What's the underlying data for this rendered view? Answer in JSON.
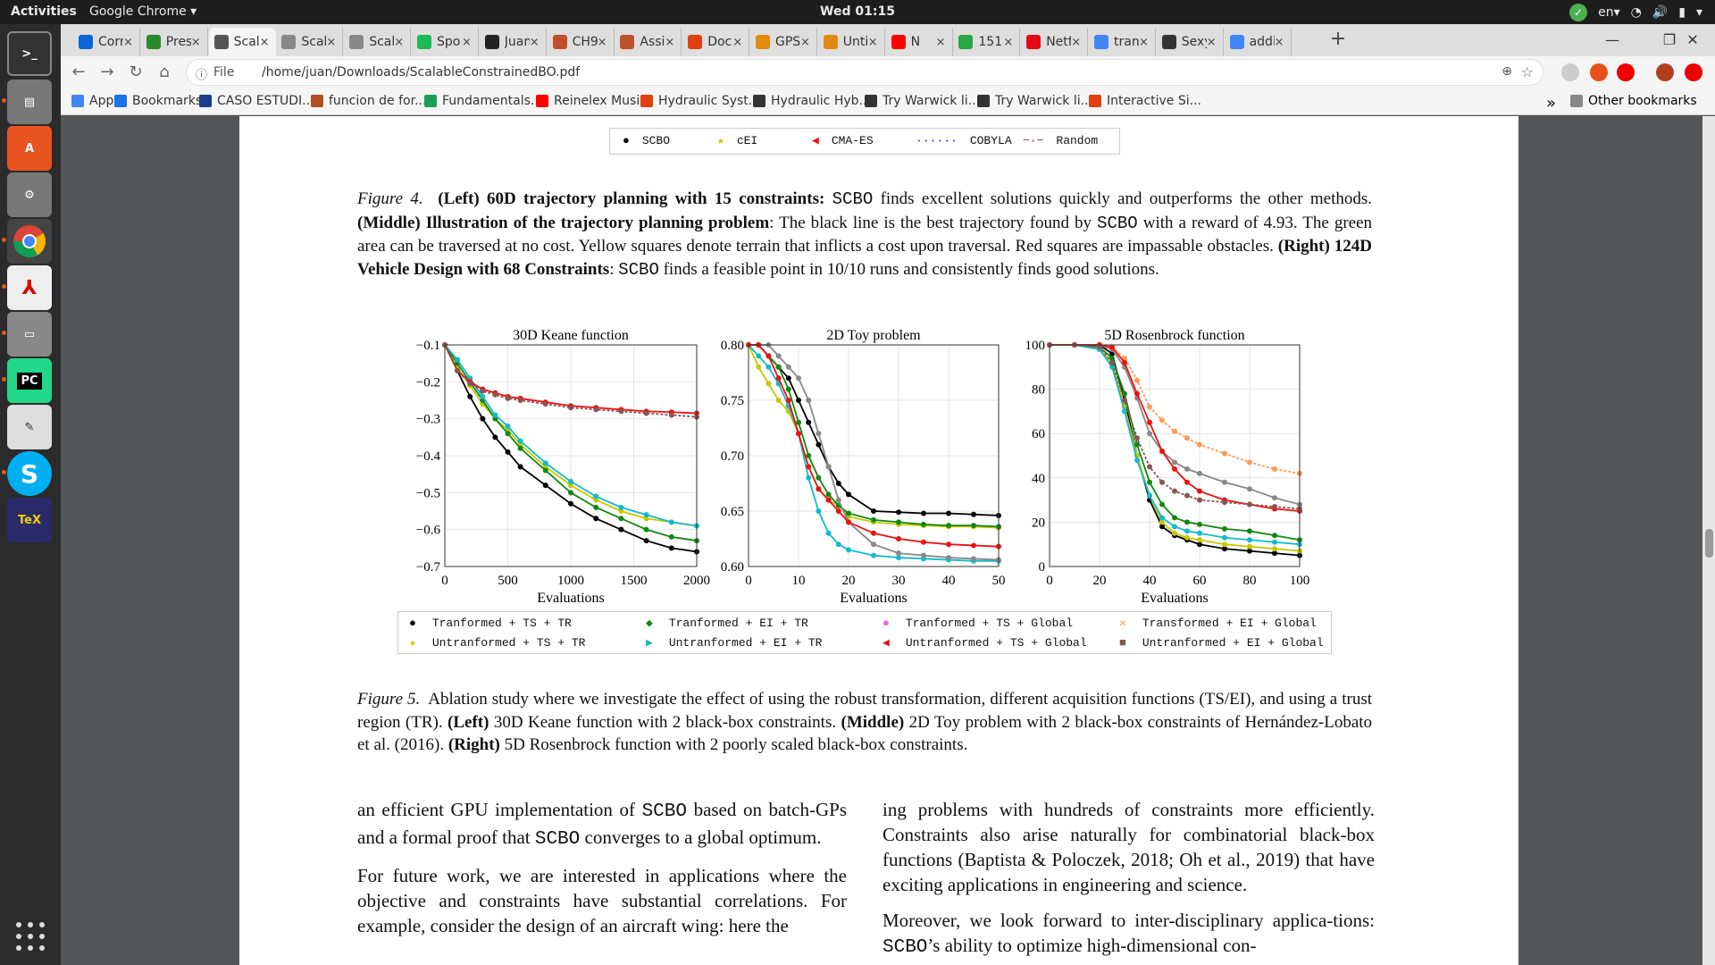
{
  "topbar": {
    "activities": "Activities",
    "app": "Google Chrome ▾",
    "clock": "Wed 01:15",
    "lang": "en▾"
  },
  "tabs": [
    {
      "label": "Corr",
      "color": "#0a64d8"
    },
    {
      "label": "Pres",
      "color": "#2a8a2a"
    },
    {
      "label": "Scal",
      "color": "#555555"
    },
    {
      "label": "Scal",
      "color": "#888888"
    },
    {
      "label": "Scal",
      "color": "#888888"
    },
    {
      "label": "Spo",
      "color": "#1db954"
    },
    {
      "label": "Juan",
      "color": "#222222"
    },
    {
      "label": "CH9",
      "color": "#c0502b"
    },
    {
      "label": "Assi",
      "color": "#c0502b"
    },
    {
      "label": "Doc",
      "color": "#e04010"
    },
    {
      "label": "GPS",
      "color": "#e08a10"
    },
    {
      "label": "Unti",
      "color": "#e08a10"
    },
    {
      "label": "N",
      "color": "#ff0000"
    },
    {
      "label": "151",
      "color": "#28a745"
    },
    {
      "label": "Netf",
      "color": "#e50914"
    },
    {
      "label": "tran",
      "color": "#4285f4"
    },
    {
      "label": "Sexy",
      "color": "#333333"
    },
    {
      "label": "addi",
      "color": "#4285f4"
    }
  ],
  "address": {
    "scheme": "File",
    "url": "/home/juan/Downloads/ScalableConstrainedBO.pdf"
  },
  "bookmarks": [
    {
      "label": "Apps",
      "color": "#4285f4"
    },
    {
      "label": "Bookmarks",
      "color": "#1a73e8"
    },
    {
      "label": "CASO ESTUDI...",
      "color": "#1c3c8c"
    },
    {
      "label": "funcion de for...",
      "color": "#b05020"
    },
    {
      "label": "Fundamentals...",
      "color": "#1a9e5a"
    },
    {
      "label": "Reinelex Music",
      "color": "#ff0000"
    },
    {
      "label": "Hydraulic Syst...",
      "color": "#e04010"
    },
    {
      "label": "Hydraulic Hyb...",
      "color": "#333333"
    },
    {
      "label": "Try Warwick li...",
      "color": "#333333"
    },
    {
      "label": "Try Warwick li...",
      "color": "#333333"
    },
    {
      "label": "Interactive Si...",
      "color": "#e04010"
    }
  ],
  "other_bookmarks": "Other bookmarks",
  "fig4_legend": [
    {
      "label": "SCBO",
      "marker": "●",
      "color": "#000000"
    },
    {
      "label": "cEI",
      "marker": "★",
      "color": "#c8c800"
    },
    {
      "label": "CMA-ES",
      "marker": "◀",
      "color": "#ee1111"
    },
    {
      "label": "COBYLA",
      "marker": "······",
      "color": "#1a1aee"
    },
    {
      "label": "Random",
      "marker": "−·−",
      "color": "#993333"
    }
  ],
  "fig4_caption": {
    "fig": "Figure 4.",
    "b1": "(Left) 60D trajectory planning with 15 constraints:",
    "m1": "SCBO",
    "t1": "finds excellent solutions quickly and outperforms the other methods.",
    "b2": "(Middle) Illustration of the trajectory planning problem",
    "t2": ": The black line is the best trajectory found by",
    "m2": "SCBO",
    "t3": "with a reward of 4.93. The green area can be traversed at no cost. Yellow squares denote terrain that inflicts a cost upon traversal. Red squares are impassable obstacles.",
    "b3": "(Right) 124D Vehicle Design with 68 Constraints",
    "t4": ":",
    "m3": "SCBO",
    "t5": "finds a feasible point in 10/10 runs and consistently finds good solutions."
  },
  "chart_data": [
    {
      "type": "line",
      "title": "30D Keane function",
      "xlabel": "Evaluations",
      "xlim": [
        0,
        2000
      ],
      "ylim": [
        -0.7,
        -0.1
      ],
      "xticks": [
        "0",
        "500",
        "1000",
        "1500",
        "2000"
      ],
      "yticks": [
        "−0.1",
        "−0.2",
        "−0.3",
        "−0.4",
        "−0.5",
        "−0.6",
        "−0.7"
      ],
      "x": [
        0,
        100,
        200,
        300,
        400,
        500,
        600,
        800,
        1000,
        1200,
        1400,
        1600,
        1800,
        2000
      ],
      "series": [
        {
          "name": "Tranformed + TS + TR",
          "values": [
            -0.1,
            -0.17,
            -0.24,
            -0.3,
            -0.35,
            -0.39,
            -0.43,
            -0.48,
            -0.53,
            -0.57,
            -0.6,
            -0.63,
            -0.65,
            -0.66
          ]
        },
        {
          "name": "Untranformed + TS + TR",
          "values": [
            -0.1,
            -0.16,
            -0.21,
            -0.26,
            -0.3,
            -0.33,
            -0.37,
            -0.43,
            -0.48,
            -0.52,
            -0.55,
            -0.57,
            -0.58,
            -0.59
          ]
        },
        {
          "name": "Tranformed + EI + TR",
          "values": [
            -0.1,
            -0.15,
            -0.2,
            -0.25,
            -0.3,
            -0.34,
            -0.38,
            -0.44,
            -0.5,
            -0.54,
            -0.57,
            -0.6,
            -0.62,
            -0.63
          ]
        },
        {
          "name": "Untranformed + EI + TR",
          "values": [
            -0.1,
            -0.14,
            -0.19,
            -0.24,
            -0.29,
            -0.32,
            -0.36,
            -0.42,
            -0.47,
            -0.51,
            -0.54,
            -0.56,
            -0.58,
            -0.59
          ]
        },
        {
          "name": "Untranformed + TS + Global",
          "values": [
            -0.1,
            -0.17,
            -0.2,
            -0.22,
            -0.23,
            -0.24,
            -0.245,
            -0.255,
            -0.265,
            -0.27,
            -0.275,
            -0.28,
            -0.282,
            -0.285
          ]
        },
        {
          "name": "Untranformed + EI + Global",
          "values": [
            -0.1,
            -0.17,
            -0.205,
            -0.225,
            -0.235,
            -0.245,
            -0.25,
            -0.26,
            -0.27,
            -0.275,
            -0.28,
            -0.285,
            -0.29,
            -0.295
          ]
        }
      ]
    },
    {
      "type": "line",
      "title": "2D Toy problem",
      "xlabel": "Evaluations",
      "xlim": [
        0,
        50
      ],
      "ylim": [
        0.6,
        0.8
      ],
      "xticks": [
        "0",
        "10",
        "20",
        "30",
        "40",
        "50"
      ],
      "yticks": [
        "0.80",
        "0.75",
        "0.70",
        "0.65",
        "0.60"
      ],
      "x": [
        0,
        2,
        4,
        6,
        8,
        10,
        12,
        14,
        16,
        18,
        20,
        25,
        30,
        35,
        40,
        45,
        50
      ],
      "series": [
        {
          "name": "Tranformed + TS + TR",
          "values": [
            0.8,
            0.8,
            0.79,
            0.78,
            0.77,
            0.75,
            0.73,
            0.71,
            0.69,
            0.675,
            0.665,
            0.65,
            0.649,
            0.648,
            0.648,
            0.647,
            0.646
          ]
        },
        {
          "name": "Untranformed + TS + TR",
          "values": [
            0.8,
            0.78,
            0.765,
            0.75,
            0.74,
            0.72,
            0.69,
            0.67,
            0.66,
            0.655,
            0.645,
            0.64,
            0.638,
            0.637,
            0.636,
            0.636,
            0.635
          ]
        },
        {
          "name": "Tranformed + EI + TR",
          "values": [
            0.8,
            0.8,
            0.79,
            0.78,
            0.76,
            0.73,
            0.7,
            0.68,
            0.665,
            0.655,
            0.648,
            0.642,
            0.64,
            0.638,
            0.637,
            0.637,
            0.636
          ]
        },
        {
          "name": "Untranformed + EI + TR",
          "values": [
            0.8,
            0.79,
            0.78,
            0.765,
            0.745,
            0.72,
            0.68,
            0.65,
            0.63,
            0.62,
            0.615,
            0.61,
            0.608,
            0.607,
            0.606,
            0.605,
            0.605
          ]
        },
        {
          "name": "Transformed + TS + Global",
          "values": [
            0.8,
            0.8,
            0.8,
            0.79,
            0.78,
            0.77,
            0.75,
            0.72,
            0.69,
            0.66,
            0.64,
            0.62,
            0.612,
            0.61,
            0.608,
            0.607,
            0.606
          ]
        },
        {
          "name": "Untranformed + TS + Global",
          "values": [
            0.8,
            0.8,
            0.79,
            0.77,
            0.75,
            0.72,
            0.69,
            0.67,
            0.66,
            0.65,
            0.64,
            0.63,
            0.625,
            0.622,
            0.62,
            0.619,
            0.618
          ]
        }
      ]
    },
    {
      "type": "line",
      "title": "5D Rosenbrock function",
      "xlabel": "Evaluations",
      "xlim": [
        0,
        100
      ],
      "ylim": [
        0,
        100
      ],
      "xticks": [
        "0",
        "20",
        "40",
        "60",
        "80",
        "100"
      ],
      "yticks": [
        "100",
        "80",
        "60",
        "40",
        "20",
        "0"
      ],
      "x": [
        0,
        10,
        20,
        25,
        30,
        35,
        40,
        45,
        50,
        55,
        60,
        70,
        80,
        90,
        100
      ],
      "series": [
        {
          "name": "Tranformed + TS + TR",
          "values": [
            100,
            100,
            100,
            96,
            75,
            50,
            30,
            18,
            14,
            12,
            10,
            8,
            7,
            6,
            5
          ]
        },
        {
          "name": "Untranformed + TS + TR",
          "values": [
            100,
            100,
            98,
            92,
            72,
            50,
            32,
            20,
            15,
            13,
            12,
            10,
            9,
            8,
            7
          ]
        },
        {
          "name": "Tranformed + EI + TR",
          "values": [
            100,
            100,
            99,
            94,
            78,
            55,
            38,
            28,
            22,
            20,
            19,
            17,
            16,
            14,
            12
          ]
        },
        {
          "name": "Untranformed + EI + TR",
          "values": [
            100,
            100,
            98,
            90,
            70,
            48,
            32,
            22,
            18,
            16,
            15,
            13,
            12,
            11,
            10
          ]
        },
        {
          "name": "Transformed + TS + Global",
          "values": [
            100,
            100,
            100,
            98,
            90,
            76,
            60,
            52,
            47,
            44,
            42,
            38,
            35,
            31,
            28
          ]
        },
        {
          "name": "Transformed + EI + Global",
          "values": [
            100,
            100,
            100,
            99,
            94,
            84,
            72,
            66,
            61,
            58,
            55,
            51,
            47,
            44,
            42
          ]
        },
        {
          "name": "Untranformed + TS + Global",
          "values": [
            100,
            100,
            100,
            99,
            92,
            78,
            65,
            52,
            44,
            38,
            34,
            30,
            28,
            26,
            25
          ]
        },
        {
          "name": "Untranformed + EI + Global",
          "values": [
            100,
            100,
            99,
            92,
            75,
            58,
            45,
            38,
            34,
            32,
            30,
            29,
            28,
            27,
            26
          ]
        }
      ]
    }
  ],
  "fig5_legend": [
    {
      "label": "Tranformed + TS + TR",
      "marker": "●",
      "color": "#000000"
    },
    {
      "label": "Tranformed + EI + TR",
      "marker": "◆",
      "color": "#118811"
    },
    {
      "label": "Tranformed + TS + Global",
      "marker": "●",
      "color": "#ee66cc"
    },
    {
      "label": "Transformed + EI + Global",
      "marker": "✕",
      "color": "#ff9955"
    },
    {
      "label": "Untranformed + TS + TR",
      "marker": "★",
      "color": "#c8c800"
    },
    {
      "label": "Untranformed + EI + TR",
      "marker": "▶",
      "color": "#11bbcc"
    },
    {
      "label": "Untranformed + TS + Global",
      "marker": "◀",
      "color": "#ee1111"
    },
    {
      "label": "Untranformed + EI + Global",
      "marker": "■",
      "color": "#885555"
    }
  ],
  "fig5_caption": {
    "fig": "Figure 5.",
    "t1": "Ablation study where we investigate the effect of using the robust transformation, different acquisition functions (TS/EI), and using a trust region (TR).",
    "b1": "(Left)",
    "t2": "30D Keane function with 2 black-box constraints.",
    "b2": "(Middle)",
    "t3": "2D Toy problem with 2 black-box constraints of Hernández-Lobato et al. (2016).",
    "b3": "(Right)",
    "t4": "5D Rosenbrock function with 2 poorly scaled black-box constraints."
  },
  "left_col": {
    "p1a": "an efficient GPU implementation of",
    "m1": "SCBO",
    "p1b": "based on batch-GPs and a formal proof that",
    "m2": "SCBO",
    "p1c": "converges to a global optimum.",
    "p2": "For future work, we are interested in applications where the objective and constraints have substantial correlations. For example, consider the design of an aircraft wing: here the"
  },
  "right_col": {
    "p1": "ing problems with hundreds of constraints more efficiently. Constraints also arise naturally for combinatorial black-box functions (Baptista & Poloczek, 2018; Oh et al., 2019) that have exciting applications in engineering and science.",
    "p2a": "Moreover, we look forward to inter-disciplinary applica-tions:",
    "m1": "SCBO",
    "p2b": "’s ability to optimize high-dimensional con-"
  }
}
